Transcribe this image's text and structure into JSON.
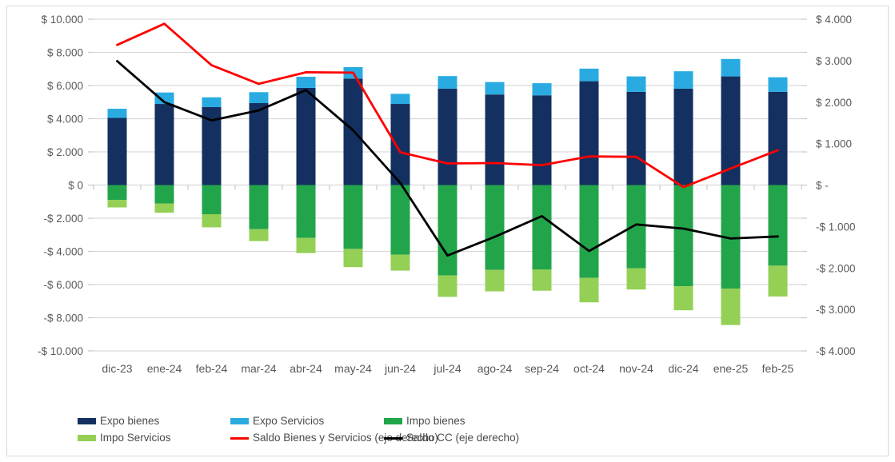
{
  "chart_data": {
    "type": "combo-stacked-bar-line",
    "title": "",
    "categories": [
      "dic-23",
      "ene-24",
      "feb-24",
      "mar-24",
      "abr-24",
      "may-24",
      "jun-24",
      "jul-24",
      "ago-24",
      "sep-24",
      "oct-24",
      "nov-24",
      "dic-24",
      "ene-25",
      "feb-25"
    ],
    "bar_series": [
      {
        "name": "Expo bienes",
        "color": "#143061",
        "axis": "left",
        "values": [
          4050,
          4890,
          4700,
          4940,
          5860,
          6420,
          4890,
          5810,
          5460,
          5410,
          6260,
          5620,
          5810,
          6550,
          5620
        ]
      },
      {
        "name": "Expo Servicios",
        "color": "#29ABE2",
        "axis": "left",
        "values": [
          550,
          690,
          590,
          660,
          670,
          690,
          610,
          760,
          750,
          730,
          760,
          930,
          1050,
          1050,
          880
        ]
      },
      {
        "name": "Impo bienes",
        "color": "#22A44B",
        "axis": "left",
        "values": [
          -900,
          -1110,
          -1760,
          -2660,
          -3190,
          -3850,
          -4200,
          -5450,
          -5120,
          -5100,
          -5600,
          -5020,
          -6100,
          -6240,
          -4860
        ]
      },
      {
        "name": "Impo Servicios",
        "color": "#94D055",
        "axis": "left",
        "values": [
          -450,
          -560,
          -790,
          -720,
          -910,
          -1100,
          -960,
          -1290,
          -1290,
          -1270,
          -1470,
          -1280,
          -1450,
          -2200,
          -1860
        ]
      }
    ],
    "line_series": [
      {
        "name": "Saldo Bienes y Servicios (eje derecho)",
        "color": "#FE0000",
        "axis": "right",
        "values": [
          3380,
          3890,
          2890,
          2440,
          2720,
          2710,
          790,
          520,
          530,
          480,
          690,
          680,
          -50,
          400,
          840
        ]
      },
      {
        "name": "Saldo CC (eje derecho)",
        "color": "#000000",
        "axis": "right",
        "values": [
          2990,
          2000,
          1560,
          1800,
          2290,
          1320,
          50,
          -1700,
          -1250,
          -750,
          -1590,
          -950,
          -1050,
          -1290,
          -1240
        ]
      }
    ],
    "left_axis": {
      "min": -10000,
      "max": 10000,
      "step": 2000,
      "tick_labels": [
        "$ 10.000",
        "$ 8.000",
        "$ 6.000",
        "$ 4.000",
        "$ 2.000",
        "$ 0",
        "-$ 2.000",
        "-$ 4.000",
        "-$ 6.000",
        "-$ 8.000",
        "-$ 10.000"
      ]
    },
    "right_axis": {
      "min": -4000,
      "max": 4000,
      "step": 1000,
      "tick_labels": [
        "$ 4.000",
        "$ 3.000",
        "$ 2.000",
        "$ 1.000",
        "$ -",
        "-$ 1.000",
        "-$ 2.000",
        "-$ 3.000",
        "-$ 4.000"
      ]
    },
    "grid": true,
    "legend_position": "bottom-left-two-rows",
    "colors": {
      "gridline": "#D9D9D9",
      "tick": "#C9C9C9",
      "axis_text": "#595959",
      "frame_border": "#D9D9D9"
    }
  }
}
